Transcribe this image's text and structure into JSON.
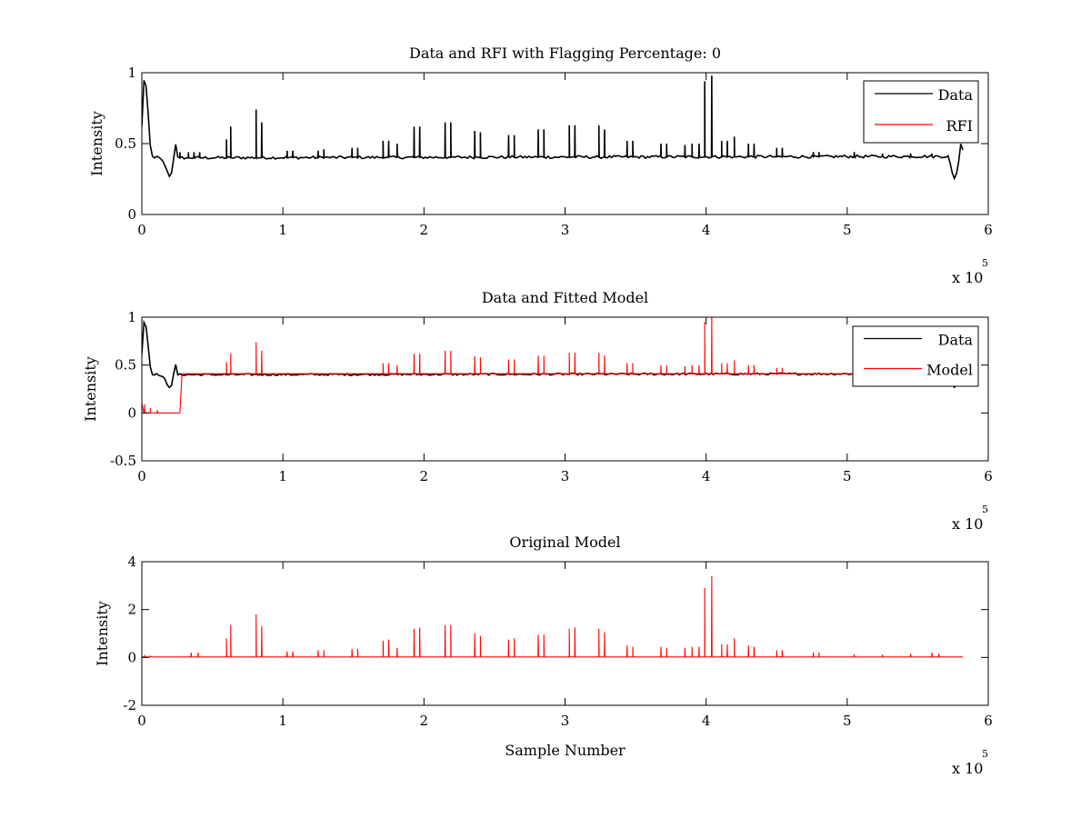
{
  "chart_data": [
    {
      "type": "line",
      "title": "Data and RFI with Flagging Percentage: 0",
      "xlabel": "",
      "ylabel": "Intensity",
      "xlim": [
        0,
        600000
      ],
      "ylim": [
        0,
        1
      ],
      "xticks": [
        0,
        1,
        2,
        3,
        4,
        5,
        6
      ],
      "yticks": [
        0,
        0.5,
        1
      ],
      "xticklabels": [
        "0",
        "1",
        "2",
        "3",
        "4",
        "5",
        "6"
      ],
      "yticklabels": [
        "0",
        "0.5",
        "1"
      ],
      "x_exponent": {
        "base": "x 10",
        "power": "5"
      },
      "legend": {
        "position": "top-right",
        "entries": [
          {
            "label": "Data",
            "color": "#000000"
          },
          {
            "label": "RFI",
            "color": "#ff0000"
          }
        ]
      },
      "series": [
        {
          "name": "Data",
          "color": "#000000",
          "baseline": 0.41,
          "profile": [
            [
              0,
              0.62
            ],
            [
              1000,
              0.94
            ],
            [
              2500,
              0.97
            ],
            [
              4500,
              0.7
            ],
            [
              6500,
              0.41
            ],
            [
              12000,
              0.4
            ],
            [
              16000,
              0.36
            ],
            [
              19000,
              0.27
            ],
            [
              21000,
              0.29
            ],
            [
              24000,
              0.5
            ],
            [
              25500,
              0.4
            ],
            [
              572000,
              0.41
            ],
            [
              574000,
              0.3
            ],
            [
              576000,
              0.26
            ],
            [
              578000,
              0.3
            ],
            [
              581000,
              0.53
            ],
            [
              583000,
              0.4
            ]
          ],
          "spikes": [
            [
              27000,
              0.44
            ],
            [
              33000,
              0.44
            ],
            [
              37000,
              0.44
            ],
            [
              41000,
              0.44
            ],
            [
              60000,
              0.53
            ],
            [
              63000,
              0.62
            ],
            [
              81000,
              0.74
            ],
            [
              85000,
              0.65
            ],
            [
              103000,
              0.45
            ],
            [
              107000,
              0.45
            ],
            [
              125000,
              0.45
            ],
            [
              129000,
              0.46
            ],
            [
              149000,
              0.47
            ],
            [
              153000,
              0.47
            ],
            [
              171000,
              0.52
            ],
            [
              175000,
              0.52
            ],
            [
              181000,
              0.5
            ],
            [
              193000,
              0.62
            ],
            [
              197000,
              0.62
            ],
            [
              215000,
              0.65
            ],
            [
              219000,
              0.65
            ],
            [
              236000,
              0.59
            ],
            [
              240000,
              0.58
            ],
            [
              260000,
              0.56
            ],
            [
              264000,
              0.56
            ],
            [
              281000,
              0.6
            ],
            [
              285000,
              0.6
            ],
            [
              303000,
              0.63
            ],
            [
              307000,
              0.63
            ],
            [
              324000,
              0.63
            ],
            [
              328000,
              0.6
            ],
            [
              344000,
              0.52
            ],
            [
              348000,
              0.52
            ],
            [
              368000,
              0.5
            ],
            [
              372000,
              0.5
            ],
            [
              385000,
              0.49
            ],
            [
              390000,
              0.5
            ],
            [
              395000,
              0.5
            ],
            [
              399000,
              0.94
            ],
            [
              404000,
              0.98
            ],
            [
              411000,
              0.52
            ],
            [
              415000,
              0.52
            ],
            [
              420000,
              0.55
            ],
            [
              430000,
              0.5
            ],
            [
              434000,
              0.5
            ],
            [
              450000,
              0.47
            ],
            [
              454000,
              0.47
            ],
            [
              476000,
              0.44
            ],
            [
              480000,
              0.44
            ],
            [
              505000,
              0.44
            ],
            [
              525000,
              0.43
            ],
            [
              545000,
              0.43
            ],
            [
              560000,
              0.43
            ]
          ]
        }
      ]
    },
    {
      "type": "line",
      "title": "Data and Fitted Model",
      "xlabel": "",
      "ylabel": "Intensity",
      "xlim": [
        0,
        600000
      ],
      "ylim": [
        -0.5,
        1
      ],
      "xticks": [
        0,
        1,
        2,
        3,
        4,
        5,
        6
      ],
      "yticks": [
        -0.5,
        0,
        0.5,
        1
      ],
      "xticklabels": [
        "0",
        "1",
        "2",
        "3",
        "4",
        "5",
        "6"
      ],
      "yticklabels": [
        "-0.5",
        "0",
        "0.5",
        "1"
      ],
      "x_exponent": {
        "base": "x 10",
        "power": "5"
      },
      "legend": {
        "position": "top-right",
        "entries": [
          {
            "label": "Data",
            "color": "#000000"
          },
          {
            "label": "Model",
            "color": "#ff0000"
          }
        ]
      },
      "series": [
        {
          "name": "Data",
          "color": "#000000",
          "baseline": 0.41,
          "profile": [
            [
              0,
              0.62
            ],
            [
              1000,
              0.94
            ],
            [
              2500,
              0.97
            ],
            [
              4500,
              0.7
            ],
            [
              6500,
              0.41
            ],
            [
              12000,
              0.4
            ],
            [
              16000,
              0.36
            ],
            [
              19000,
              0.27
            ],
            [
              21000,
              0.29
            ],
            [
              24000,
              0.5
            ],
            [
              25500,
              0.4
            ],
            [
              572000,
              0.41
            ],
            [
              574000,
              0.3
            ],
            [
              576000,
              0.26
            ],
            [
              578000,
              0.3
            ],
            [
              581000,
              0.53
            ],
            [
              583000,
              0.4
            ]
          ],
          "spikes": []
        },
        {
          "name": "Model",
          "color": "#ff0000",
          "baseline": 0.41,
          "profile": [
            [
              0,
              0.1
            ],
            [
              1000,
              0.0
            ],
            [
              27000,
              0.0
            ],
            [
              27500,
              0.41
            ],
            [
              583000,
              0.41
            ]
          ],
          "spikes": [
            [
              2000,
              0.09
            ],
            [
              6000,
              0.05
            ],
            [
              11000,
              0.03
            ],
            [
              60000,
              0.53
            ],
            [
              63000,
              0.62
            ],
            [
              81000,
              0.74
            ],
            [
              85000,
              0.65
            ],
            [
              171000,
              0.52
            ],
            [
              175000,
              0.52
            ],
            [
              181000,
              0.5
            ],
            [
              193000,
              0.62
            ],
            [
              197000,
              0.62
            ],
            [
              215000,
              0.65
            ],
            [
              219000,
              0.65
            ],
            [
              236000,
              0.59
            ],
            [
              240000,
              0.58
            ],
            [
              260000,
              0.56
            ],
            [
              264000,
              0.56
            ],
            [
              281000,
              0.6
            ],
            [
              285000,
              0.6
            ],
            [
              303000,
              0.63
            ],
            [
              307000,
              0.63
            ],
            [
              324000,
              0.63
            ],
            [
              328000,
              0.6
            ],
            [
              344000,
              0.52
            ],
            [
              348000,
              0.52
            ],
            [
              368000,
              0.5
            ],
            [
              372000,
              0.5
            ],
            [
              385000,
              0.49
            ],
            [
              390000,
              0.5
            ],
            [
              395000,
              0.5
            ],
            [
              399000,
              0.95
            ],
            [
              404000,
              1.0
            ],
            [
              411000,
              0.52
            ],
            [
              415000,
              0.52
            ],
            [
              420000,
              0.55
            ],
            [
              430000,
              0.5
            ],
            [
              434000,
              0.5
            ],
            [
              450000,
              0.47
            ],
            [
              454000,
              0.47
            ]
          ]
        }
      ]
    },
    {
      "type": "line",
      "title": "Original Model",
      "xlabel": "Sample Number",
      "ylabel": "Intensity",
      "xlim": [
        0,
        600000
      ],
      "ylim": [
        -2,
        4
      ],
      "xticks": [
        0,
        1,
        2,
        3,
        4,
        5,
        6
      ],
      "yticks": [
        -2,
        0,
        2,
        4
      ],
      "xticklabels": [
        "0",
        "1",
        "2",
        "3",
        "4",
        "5",
        "6"
      ],
      "yticklabels": [
        "-2",
        "0",
        "2",
        "4"
      ],
      "x_exponent": {
        "base": "x 10",
        "power": "5"
      },
      "legend": null,
      "series": [
        {
          "color": "#ff0000",
          "baseline": 0.02,
          "profile": [
            [
              0,
              0.02
            ],
            [
              583000,
              0.02
            ]
          ],
          "spikes": [
            [
              2000,
              0.1
            ],
            [
              6000,
              0.08
            ],
            [
              35000,
              0.2
            ],
            [
              40000,
              0.2
            ],
            [
              60000,
              0.8
            ],
            [
              63000,
              1.35
            ],
            [
              81000,
              1.8
            ],
            [
              85000,
              1.3
            ],
            [
              103000,
              0.25
            ],
            [
              107000,
              0.25
            ],
            [
              125000,
              0.3
            ],
            [
              129000,
              0.3
            ],
            [
              149000,
              0.35
            ],
            [
              153000,
              0.35
            ],
            [
              171000,
              0.7
            ],
            [
              175000,
              0.75
            ],
            [
              181000,
              0.4
            ],
            [
              193000,
              1.2
            ],
            [
              197000,
              1.25
            ],
            [
              215000,
              1.35
            ],
            [
              219000,
              1.35
            ],
            [
              236000,
              1.0
            ],
            [
              240000,
              0.9
            ],
            [
              260000,
              0.75
            ],
            [
              264000,
              0.8
            ],
            [
              281000,
              0.95
            ],
            [
              285000,
              0.95
            ],
            [
              303000,
              1.2
            ],
            [
              307000,
              1.25
            ],
            [
              324000,
              1.2
            ],
            [
              328000,
              1.05
            ],
            [
              344000,
              0.5
            ],
            [
              348000,
              0.45
            ],
            [
              368000,
              0.45
            ],
            [
              372000,
              0.4
            ],
            [
              385000,
              0.4
            ],
            [
              390000,
              0.45
            ],
            [
              395000,
              0.45
            ],
            [
              399000,
              2.9
            ],
            [
              404000,
              3.4
            ],
            [
              411000,
              0.55
            ],
            [
              415000,
              0.55
            ],
            [
              420000,
              0.8
            ],
            [
              430000,
              0.5
            ],
            [
              434000,
              0.45
            ],
            [
              450000,
              0.3
            ],
            [
              454000,
              0.3
            ],
            [
              476000,
              0.2
            ],
            [
              480000,
              0.2
            ],
            [
              505000,
              0.12
            ],
            [
              525000,
              0.12
            ],
            [
              545000,
              0.15
            ],
            [
              560000,
              0.2
            ],
            [
              565000,
              0.15
            ]
          ]
        }
      ]
    }
  ]
}
